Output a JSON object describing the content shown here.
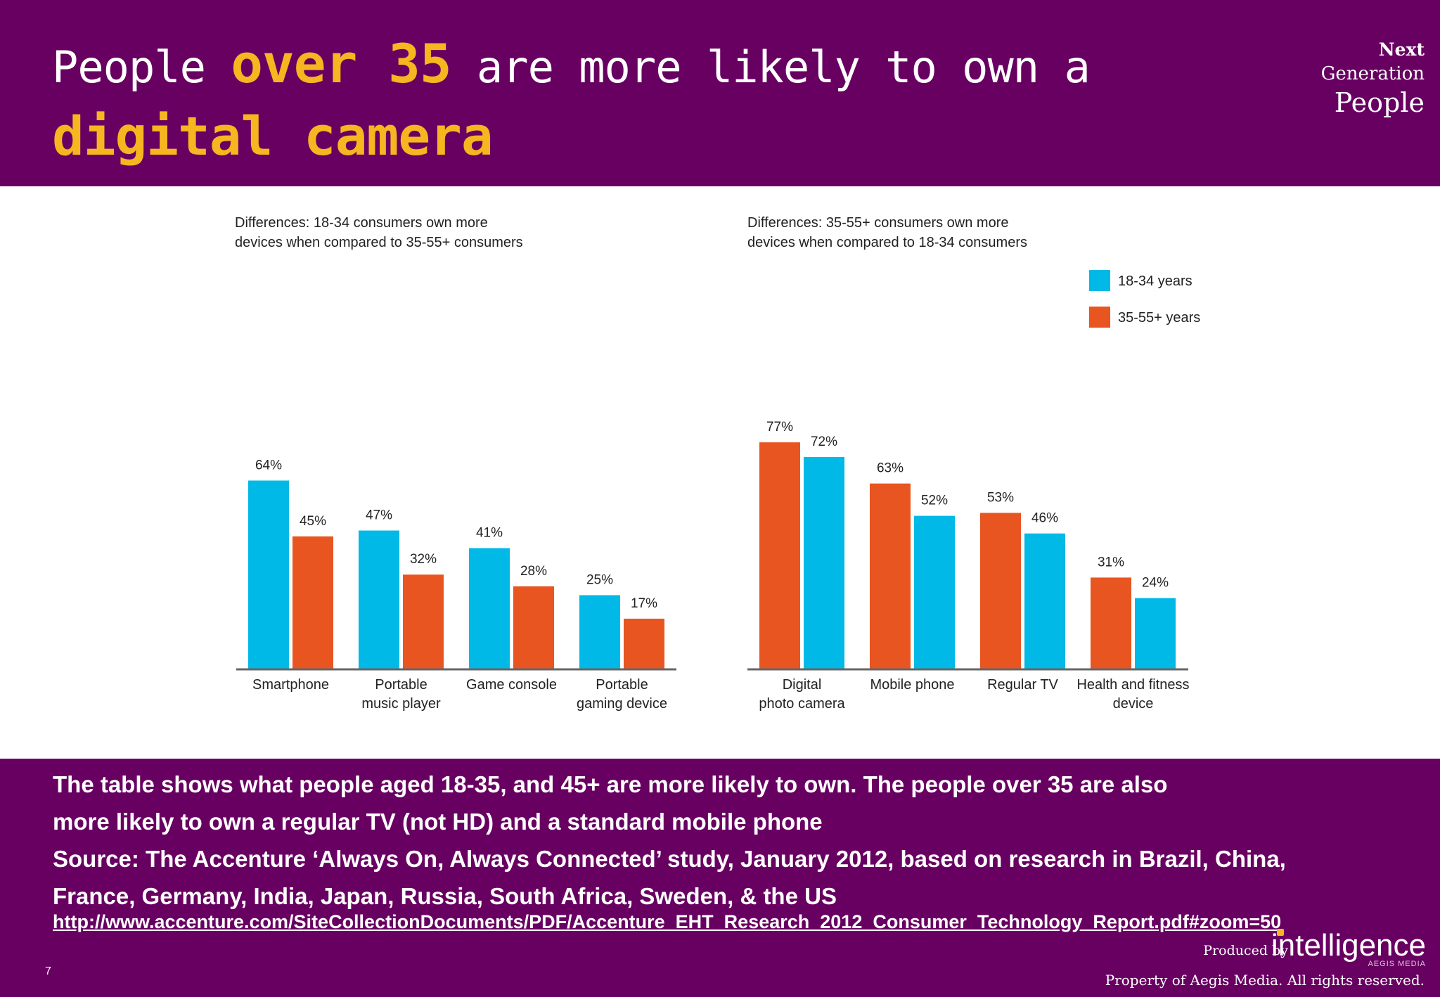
{
  "header": {
    "title_parts": [
      "People ",
      "over 35",
      " are more likely to own a ",
      "digital camera"
    ],
    "brand": [
      "Next",
      "Generation",
      "People"
    ]
  },
  "chart_data": [
    {
      "type": "bar",
      "title": "Differences: 18-34 consumers own more devices when compared to 35-55+ consumers",
      "title_lines": [
        "Differences: 18-34 consumers own more",
        "devices when compared to 35-55+ consumers"
      ],
      "categories": [
        [
          "Smartphone"
        ],
        [
          "Portable",
          "music player"
        ],
        [
          "Game console"
        ],
        [
          "Portable",
          "gaming device"
        ]
      ],
      "series": [
        {
          "name": "18-34 years",
          "values": [
            64,
            47,
            41,
            25
          ]
        },
        {
          "name": "35-55+ years",
          "values": [
            45,
            32,
            28,
            17
          ]
        }
      ],
      "data_labels": [
        [
          "64%",
          "47%",
          "41%",
          "25%"
        ],
        [
          "45%",
          "32%",
          "28%",
          "17%"
        ]
      ],
      "ylim": [
        0,
        80
      ]
    },
    {
      "type": "bar",
      "title": "Differences: 35-55+ consumers own more devices when compared to 18-34 consumers",
      "title_lines": [
        "Differences: 35-55+ consumers own more",
        "devices when compared to 18-34 consumers"
      ],
      "categories": [
        [
          "Digital",
          "photo camera"
        ],
        [
          "Mobile phone"
        ],
        [
          "Regular TV"
        ],
        [
          "Health and fitness",
          "device"
        ]
      ],
      "series": [
        {
          "name": "35-55+ years",
          "values": [
            77,
            63,
            53,
            31
          ]
        },
        {
          "name": "18-34 years",
          "values": [
            72,
            52,
            46,
            24
          ]
        }
      ],
      "data_labels": [
        [
          "77%",
          "63%",
          "53%",
          "31%"
        ],
        [
          "72%",
          "52%",
          "46%",
          "24%"
        ]
      ],
      "ylim": [
        0,
        80
      ],
      "legend": {
        "position": "top-right",
        "entries": [
          "18-34 years",
          "35-55+ years"
        ]
      }
    }
  ],
  "colors": {
    "series_18_34": "#00b9e6",
    "series_35_55": "#e85520",
    "band": "#680062",
    "highlight": "#f7b520"
  },
  "footer": {
    "description_lines": [
      "The table shows what people aged 18-35, and 45+ are more likely to own.  The people over 35 are also",
      "more likely to own a regular TV (not HD) and a standard mobile phone",
      "Source:  The Accenture ‘Always On, Always Connected’ study, January 2012, based on research in Brazil, China,",
      "France, Germany, India, Japan, Russia, South Africa, Sweden, & the US"
    ],
    "link": "http://www.accenture.com/SiteCollectionDocuments/PDF/Accenture_EHT_Research_2012_Consumer_Technology_Report.pdf#zoom=50",
    "produced_by": "Produced by",
    "logo_word": "intelligence",
    "logo_sub": "AEGIS MEDIA",
    "page_number": "7",
    "rights": "Property of Aegis Media. All rights reserved."
  }
}
